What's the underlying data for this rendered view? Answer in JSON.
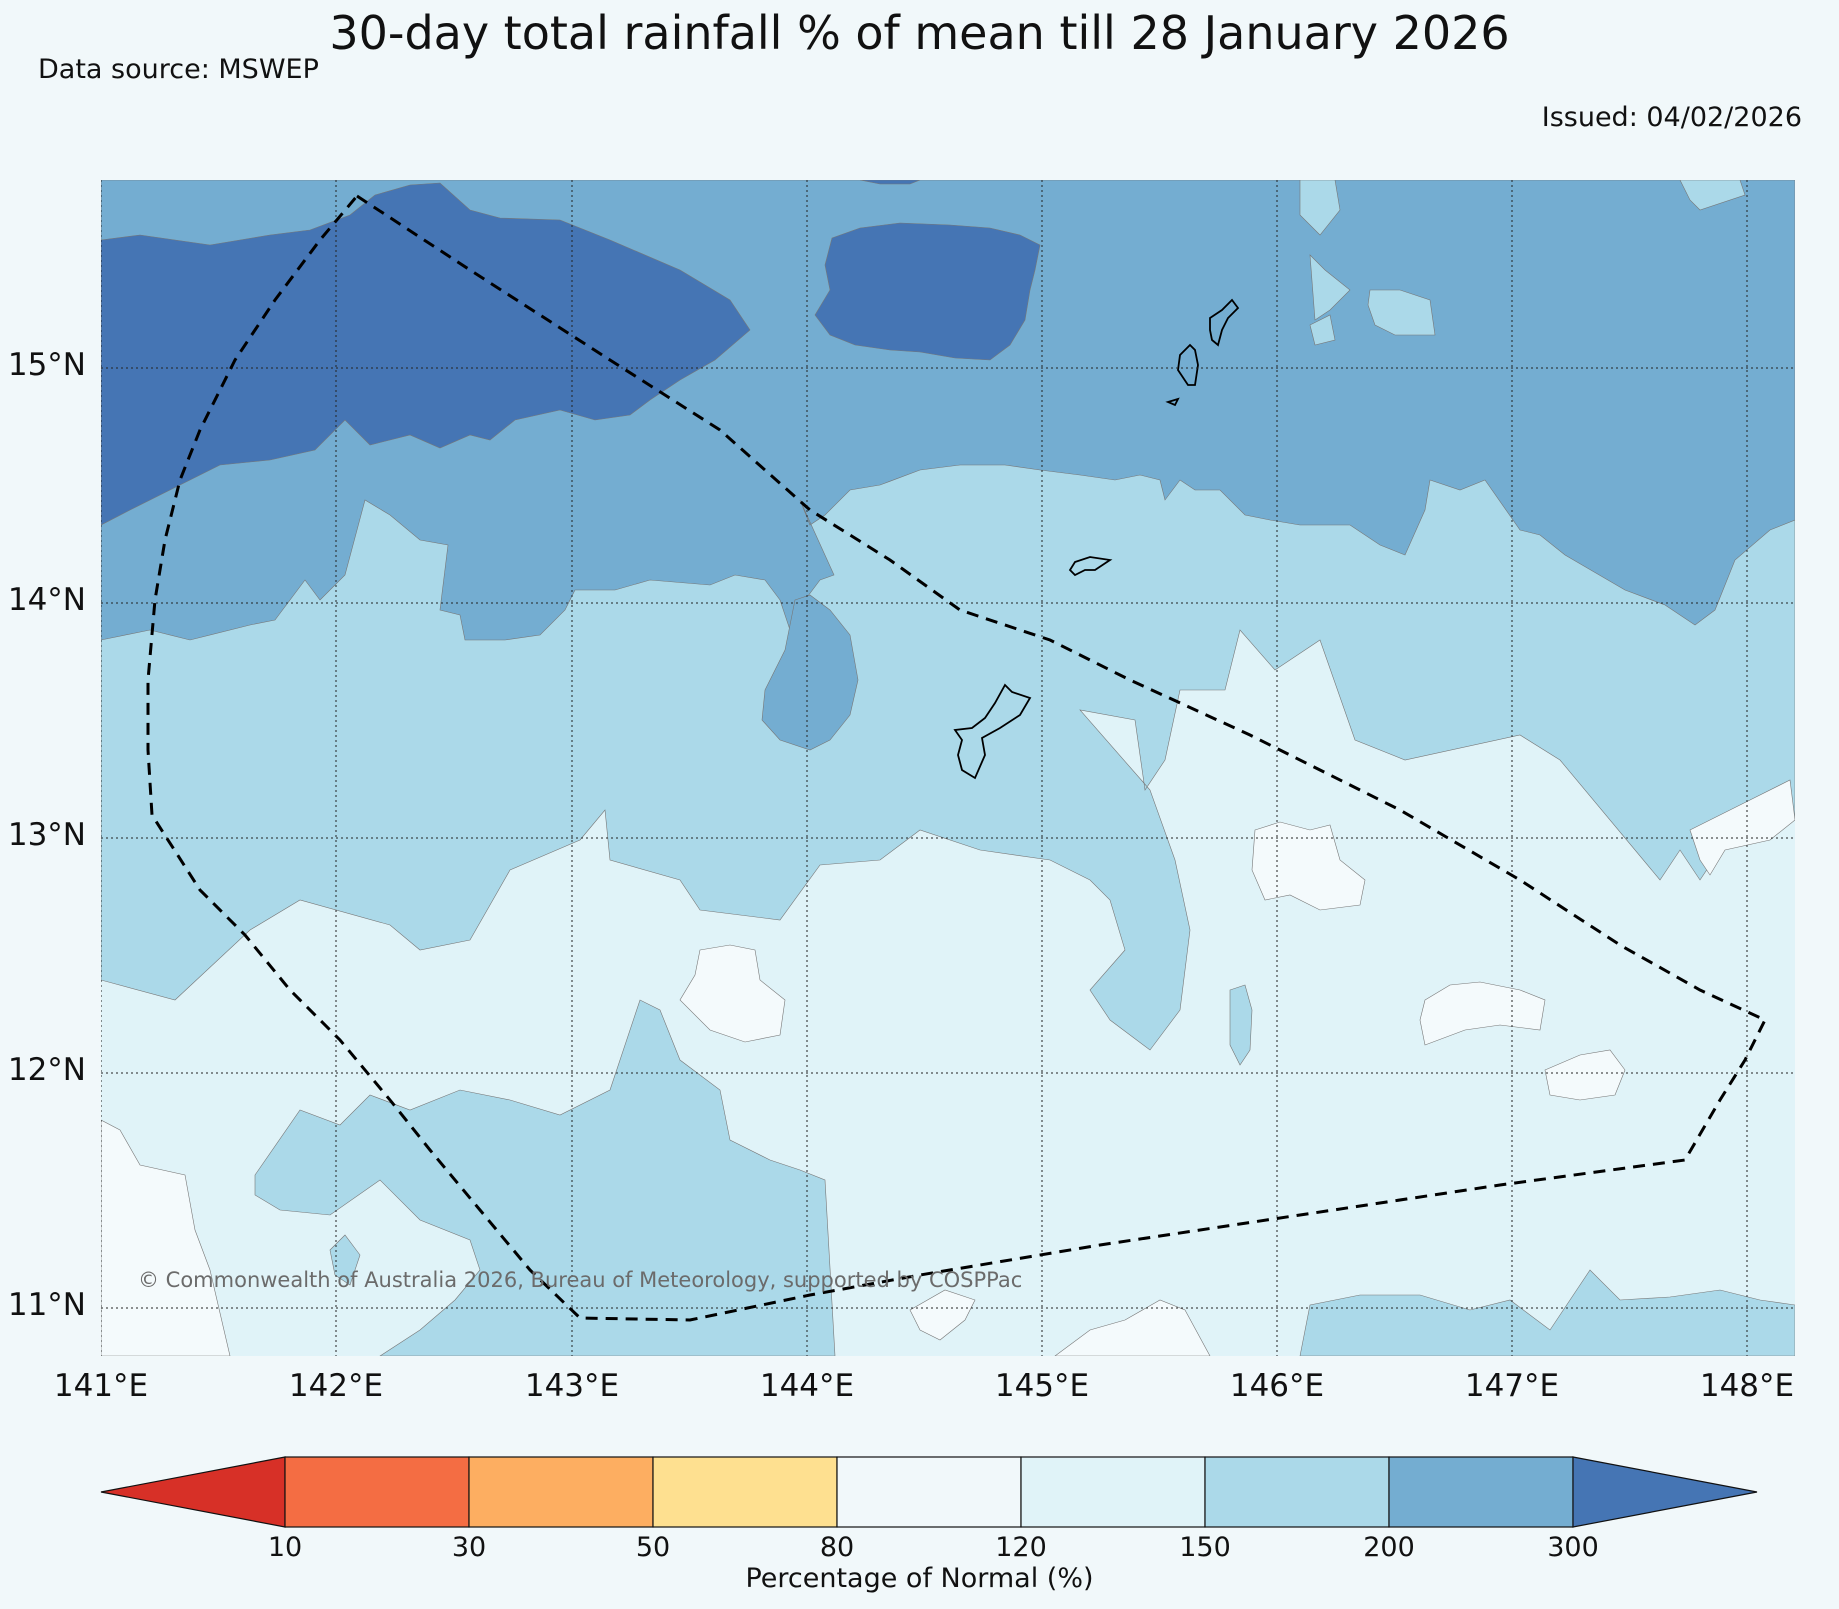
{
  "title": "30-day total rainfall % of mean till 28 January 2026",
  "data_source": "Data source: MSWEP",
  "issued": "Issued: 04/02/2026",
  "copyright": "© Commonwealth of Australia 2026, Bureau of Meteorology, supported by COSPPac",
  "map": {
    "lat_labels": [
      "15°N",
      "14°N",
      "13°N",
      "12°N",
      "11°N"
    ],
    "lon_labels": [
      "141°E",
      "142°E",
      "143°E",
      "144°E",
      "145°E",
      "146°E",
      "147°E",
      "148°E"
    ],
    "lon_range": [
      141,
      148.2
    ],
    "lat_range": [
      10.8,
      15.8
    ]
  },
  "colorbar": {
    "label": "Percentage of Normal (%)",
    "ticks": [
      "10",
      "30",
      "50",
      "80",
      "120",
      "150",
      "200",
      "300"
    ],
    "colors": [
      "#d73027",
      "#f46d43",
      "#fdae61",
      "#fee090",
      "#f1f8fa",
      "#e0f3f8",
      "#abd9e9",
      "#74add1",
      "#4575b4"
    ]
  }
}
